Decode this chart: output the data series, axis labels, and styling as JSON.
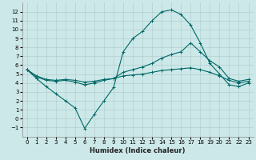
{
  "xlabel": "Humidex (Indice chaleur)",
  "background_color": "#cde8e8",
  "grid_color": "#adc8c8",
  "line_color": "#006868",
  "xlim": [
    -0.5,
    23.5
  ],
  "ylim": [
    -2,
    13
  ],
  "xticks": [
    0,
    1,
    2,
    3,
    4,
    5,
    6,
    7,
    8,
    9,
    10,
    11,
    12,
    13,
    14,
    15,
    16,
    17,
    18,
    19,
    20,
    21,
    22,
    23
  ],
  "yticks": [
    -1,
    0,
    1,
    2,
    3,
    4,
    5,
    6,
    7,
    8,
    9,
    10,
    11,
    12
  ],
  "series_peak_x": [
    0,
    1,
    2,
    3,
    4,
    5,
    6,
    7,
    8,
    9,
    10,
    11,
    12,
    13,
    14,
    15,
    16,
    17,
    18,
    19,
    20,
    21,
    22,
    23
  ],
  "series_peak_y": [
    5.5,
    4.5,
    3.6,
    2.8,
    2.0,
    1.2,
    -1.1,
    0.5,
    2.0,
    3.5,
    7.5,
    9.0,
    9.8,
    11.0,
    12.0,
    12.2,
    11.7,
    10.5,
    8.5,
    6.2,
    5.0,
    3.8,
    3.6,
    4.0
  ],
  "series_mid_x": [
    0,
    1,
    2,
    3,
    4,
    5,
    6,
    7,
    8,
    9,
    10,
    11,
    12,
    13,
    14,
    15,
    16,
    17,
    18,
    19,
    20,
    21,
    22,
    23
  ],
  "series_mid_y": [
    5.5,
    4.7,
    4.3,
    4.2,
    4.3,
    4.1,
    3.8,
    4.0,
    4.3,
    4.5,
    5.2,
    5.5,
    5.8,
    6.2,
    6.8,
    7.2,
    7.5,
    8.5,
    7.5,
    6.5,
    5.8,
    4.5,
    4.2,
    4.4
  ],
  "series_flat_x": [
    0,
    1,
    2,
    3,
    4,
    5,
    6,
    7,
    8,
    9,
    10,
    11,
    12,
    13,
    14,
    15,
    16,
    17,
    18,
    19,
    20,
    21,
    22,
    23
  ],
  "series_flat_y": [
    5.5,
    4.8,
    4.4,
    4.3,
    4.4,
    4.3,
    4.1,
    4.2,
    4.4,
    4.5,
    4.8,
    4.9,
    5.0,
    5.2,
    5.4,
    5.5,
    5.6,
    5.7,
    5.5,
    5.2,
    4.8,
    4.3,
    4.0,
    4.2
  ]
}
